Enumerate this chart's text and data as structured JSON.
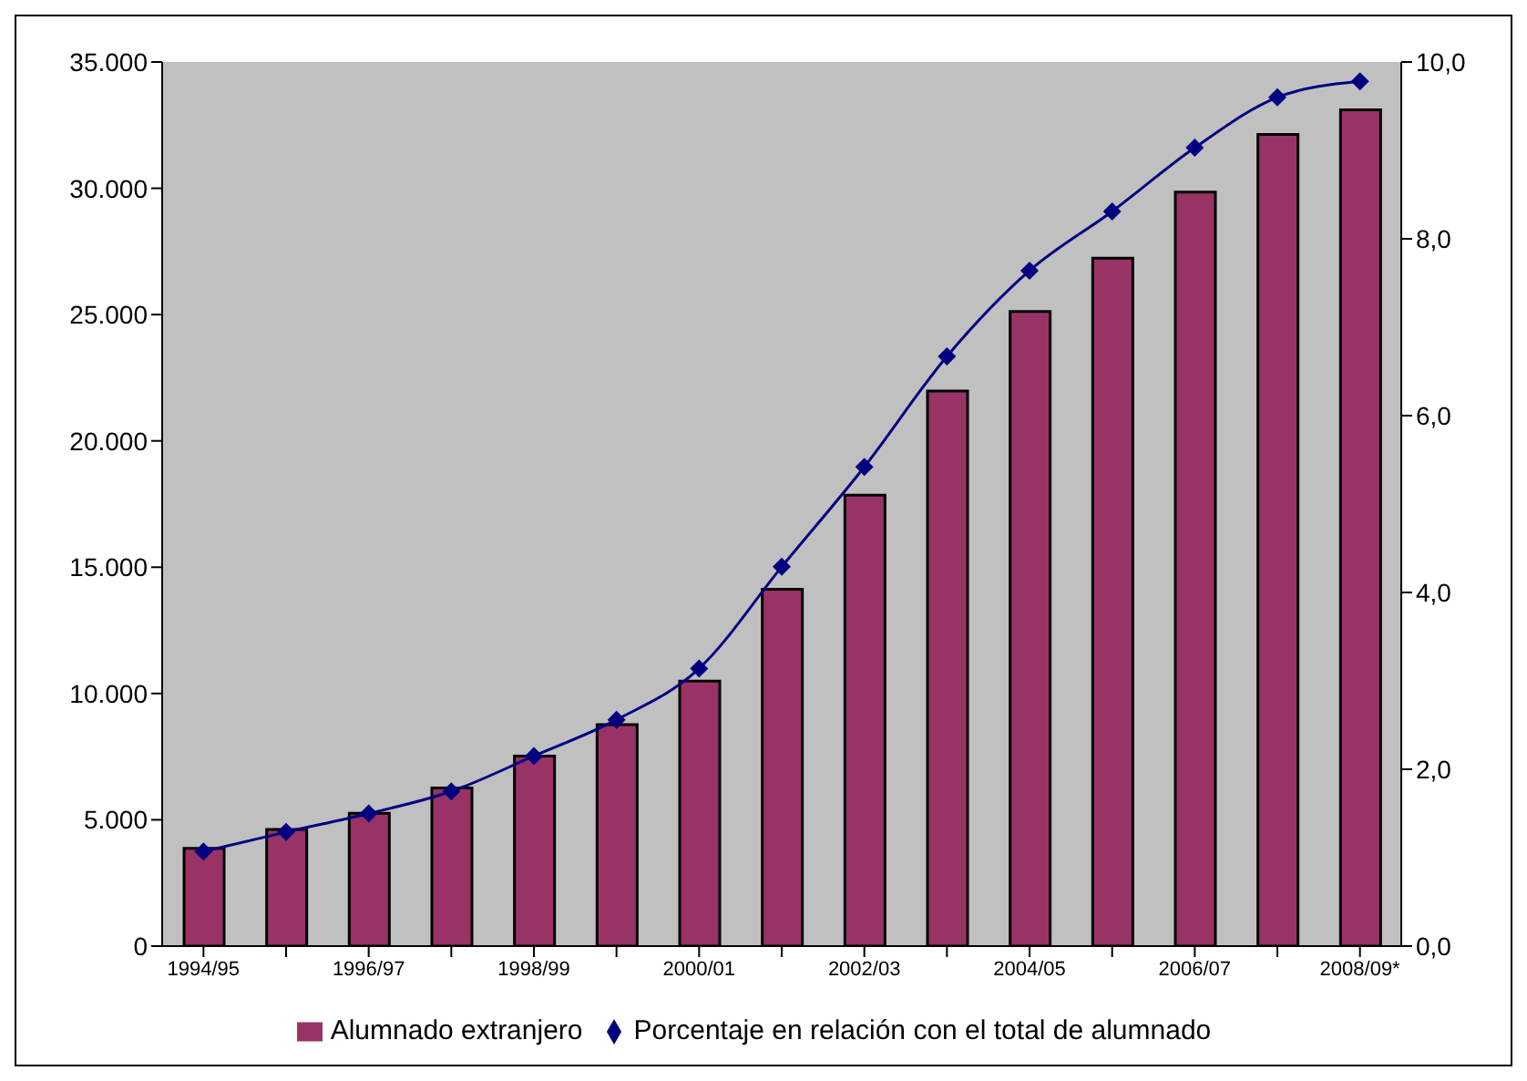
{
  "chart_data": {
    "type": "bar",
    "categories": [
      "1994/95",
      null,
      "1996/97",
      null,
      "1998/99",
      null,
      "2000/01",
      null,
      "2002/03",
      null,
      "2004/05",
      null,
      "2006/07",
      null,
      "2008/09*"
    ],
    "series": [
      {
        "name": "Alumnado extranjero",
        "color": "#993366",
        "values": [
          3870,
          4620,
          5260,
          6260,
          7520,
          8770,
          10490,
          14130,
          17850,
          21970,
          25120,
          27230,
          29850,
          32130,
          33110
        ]
      },
      {
        "name": "Porcentaje en relación con el total de alumnado",
        "type": "line",
        "axis": "y2",
        "color": "#000080",
        "marker": "diamond",
        "values": [
          1.07,
          1.29,
          1.5,
          1.75,
          2.15,
          2.56,
          3.14,
          4.29,
          5.42,
          6.67,
          7.64,
          8.31,
          9.03,
          9.6,
          9.78
        ]
      }
    ],
    "ylim": [
      0,
      35000
    ],
    "yticks": [
      {
        "value": 0,
        "label": "0"
      },
      {
        "value": 5000,
        "label": "5.000"
      },
      {
        "value": 10000,
        "label": "10.000"
      },
      {
        "value": 15000,
        "label": "15.000"
      },
      {
        "value": 20000,
        "label": "20.000"
      },
      {
        "value": 25000,
        "label": "25.000"
      },
      {
        "value": 30000,
        "label": "30.000"
      },
      {
        "value": 35000,
        "label": "35.000"
      }
    ],
    "y2lim": [
      0,
      10
    ],
    "y2ticks": [
      {
        "value": 0,
        "label": "0,0"
      },
      {
        "value": 2,
        "label": "2,0"
      },
      {
        "value": 4,
        "label": "4,0"
      },
      {
        "value": 6,
        "label": "6,0"
      },
      {
        "value": 8,
        "label": "8,0"
      },
      {
        "value": 10,
        "label": "10,0"
      }
    ],
    "legend": "bottom"
  }
}
